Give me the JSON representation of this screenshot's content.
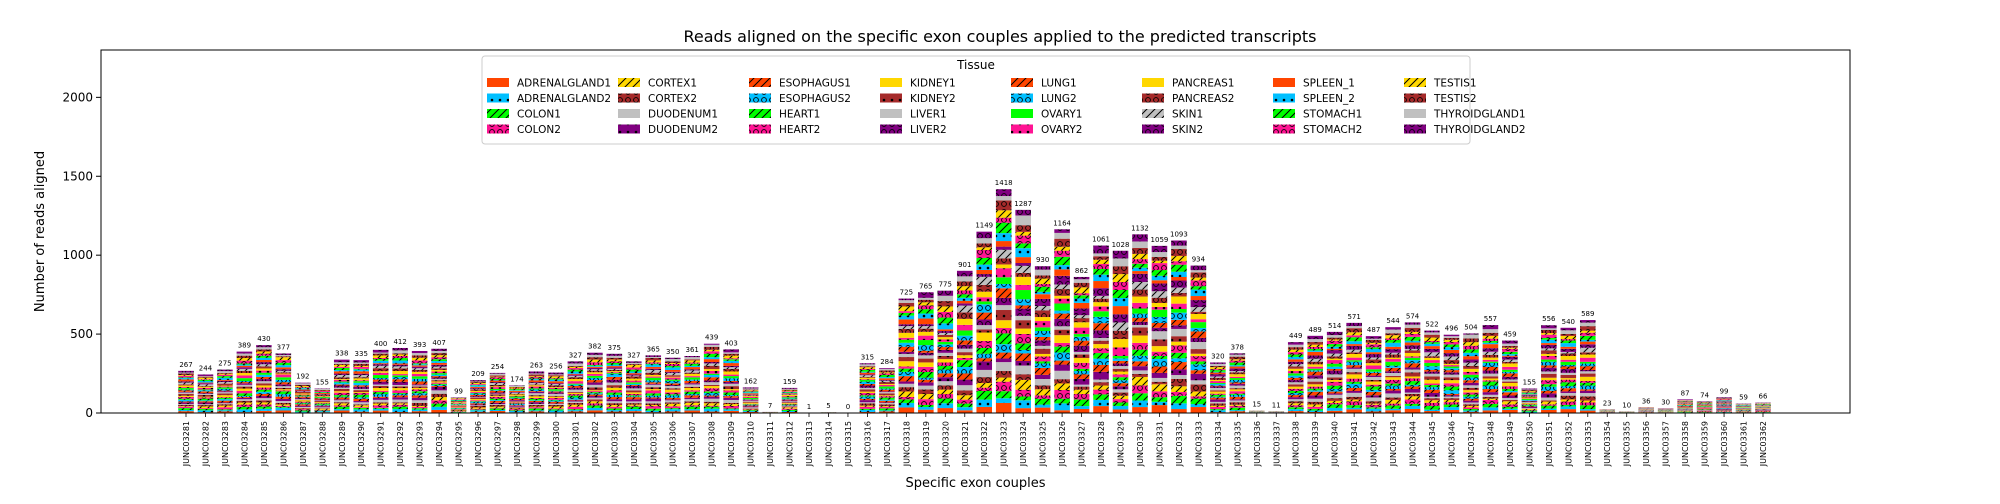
{
  "chart_data": {
    "type": "bar",
    "stacked": true,
    "title": "Reads aligned on the specific exon couples applied to the predicted transcripts",
    "xlabel": "Specific exon couples",
    "ylabel": "Number of reads aligned",
    "ylim": [
      0,
      2300
    ],
    "yticks": [
      0,
      500,
      1000,
      1500,
      2000
    ],
    "grid": false,
    "legend": {
      "title": "Tissue",
      "placement": "top-center",
      "columns": 8,
      "entries": [
        {
          "label": "ADRENALGLAND1",
          "color": "#ff4500",
          "pattern": "none"
        },
        {
          "label": "ADRENALGLAND2",
          "color": "#00bfff",
          "pattern": "dots"
        },
        {
          "label": "COLON1",
          "color": "#00ff00",
          "pattern": "slash"
        },
        {
          "label": "COLON2",
          "color": "#ff1493",
          "pattern": "circles"
        },
        {
          "label": "CORTEX1",
          "color": "#ffd700",
          "pattern": "slash"
        },
        {
          "label": "CORTEX2",
          "color": "#a52a2a",
          "pattern": "circles"
        },
        {
          "label": "DUODENUM1",
          "color": "#c0c0c0",
          "pattern": "none"
        },
        {
          "label": "DUODENUM2",
          "color": "#800080",
          "pattern": "dots"
        },
        {
          "label": "ESOPHAGUS1",
          "color": "#ff4500",
          "pattern": "slash"
        },
        {
          "label": "ESOPHAGUS2",
          "color": "#00bfff",
          "pattern": "circles"
        },
        {
          "label": "HEART1",
          "color": "#00ff00",
          "pattern": "slash"
        },
        {
          "label": "HEART2",
          "color": "#ff1493",
          "pattern": "circles"
        },
        {
          "label": "KIDNEY1",
          "color": "#ffd700",
          "pattern": "none"
        },
        {
          "label": "KIDNEY2",
          "color": "#a52a2a",
          "pattern": "dots"
        },
        {
          "label": "LIVER1",
          "color": "#c0c0c0",
          "pattern": "none"
        },
        {
          "label": "LIVER2",
          "color": "#800080",
          "pattern": "circles"
        },
        {
          "label": "LUNG1",
          "color": "#ff4500",
          "pattern": "slash"
        },
        {
          "label": "LUNG2",
          "color": "#00bfff",
          "pattern": "circles"
        },
        {
          "label": "OVARY1",
          "color": "#00ff00",
          "pattern": "none"
        },
        {
          "label": "OVARY2",
          "color": "#ff1493",
          "pattern": "dots"
        },
        {
          "label": "PANCREAS1",
          "color": "#ffd700",
          "pattern": "none"
        },
        {
          "label": "PANCREAS2",
          "color": "#a52a2a",
          "pattern": "circles"
        },
        {
          "label": "SKIN1",
          "color": "#c0c0c0",
          "pattern": "slash"
        },
        {
          "label": "SKIN2",
          "color": "#800080",
          "pattern": "circles"
        },
        {
          "label": "SPLEEN_1",
          "color": "#ff4500",
          "pattern": "none"
        },
        {
          "label": "SPLEEN_2",
          "color": "#00bfff",
          "pattern": "dots"
        },
        {
          "label": "STOMACH1",
          "color": "#00ff00",
          "pattern": "slash"
        },
        {
          "label": "STOMACH2",
          "color": "#ff1493",
          "pattern": "circles"
        },
        {
          "label": "TESTIS1",
          "color": "#ffd700",
          "pattern": "slash"
        },
        {
          "label": "TESTIS2",
          "color": "#a52a2a",
          "pattern": "circles"
        },
        {
          "label": "THYROIDGLAND1",
          "color": "#c0c0c0",
          "pattern": "none"
        },
        {
          "label": "THYROIDGLAND2",
          "color": "#800080",
          "pattern": "circles"
        }
      ]
    },
    "categories": [
      "JUNC03281",
      "JUNC03282",
      "JUNC03283",
      "JUNC03284",
      "JUNC03285",
      "JUNC03286",
      "JUNC03287",
      "JUNC03288",
      "JUNC03289",
      "JUNC03290",
      "JUNC03291",
      "JUNC03292",
      "JUNC03293",
      "JUNC03294",
      "JUNC03295",
      "JUNC03296",
      "JUNC03297",
      "JUNC03298",
      "JUNC03299",
      "JUNC03300",
      "JUNC03301",
      "JUNC03302",
      "JUNC03303",
      "JUNC03304",
      "JUNC03305",
      "JUNC03306",
      "JUNC03307",
      "JUNC03308",
      "JUNC03309",
      "JUNC03310",
      "JUNC03311",
      "JUNC03312",
      "JUNC03313",
      "JUNC03314",
      "JUNC03315",
      "JUNC03316",
      "JUNC03317",
      "JUNC03318",
      "JUNC03319",
      "JUNC03320",
      "JUNC03321",
      "JUNC03322",
      "JUNC03323",
      "JUNC03324",
      "JUNC03325",
      "JUNC03326",
      "JUNC03327",
      "JUNC03328",
      "JUNC03329",
      "JUNC03330",
      "JUNC03331",
      "JUNC03332",
      "JUNC03333",
      "JUNC03334",
      "JUNC03335",
      "JUNC03336",
      "JUNC03337",
      "JUNC03338",
      "JUNC03339",
      "JUNC03340",
      "JUNC03341",
      "JUNC03342",
      "JUNC03343",
      "JUNC03344",
      "JUNC03345",
      "JUNC03346",
      "JUNC03347",
      "JUNC03348",
      "JUNC03349",
      "JUNC03350",
      "JUNC03351",
      "JUNC03352",
      "JUNC03353",
      "JUNC03354",
      "JUNC03355",
      "JUNC03356",
      "JUNC03357",
      "JUNC03358",
      "JUNC03359",
      "JUNC03360",
      "JUNC03361",
      "JUNC03362"
    ],
    "totals": [
      267,
      244,
      275,
      389,
      430,
      377,
      192,
      155,
      338,
      335,
      400,
      412,
      393,
      407,
      99,
      209,
      254,
      174,
      263,
      256,
      327,
      382,
      375,
      327,
      365,
      350,
      361,
      439,
      403,
      162,
      7,
      159,
      1,
      5,
      0,
      315,
      284,
      725,
      765,
      775,
      901,
      1149,
      1418,
      1287,
      930,
      1164,
      862,
      1061,
      1028,
      1132,
      1059,
      1093,
      934,
      320,
      378,
      15,
      11,
      449,
      489,
      514,
      571,
      487,
      544,
      574,
      522,
      496,
      504,
      557,
      459,
      155,
      556,
      540,
      589,
      23,
      10,
      36,
      30,
      87,
      74,
      99,
      59,
      66
    ]
  }
}
